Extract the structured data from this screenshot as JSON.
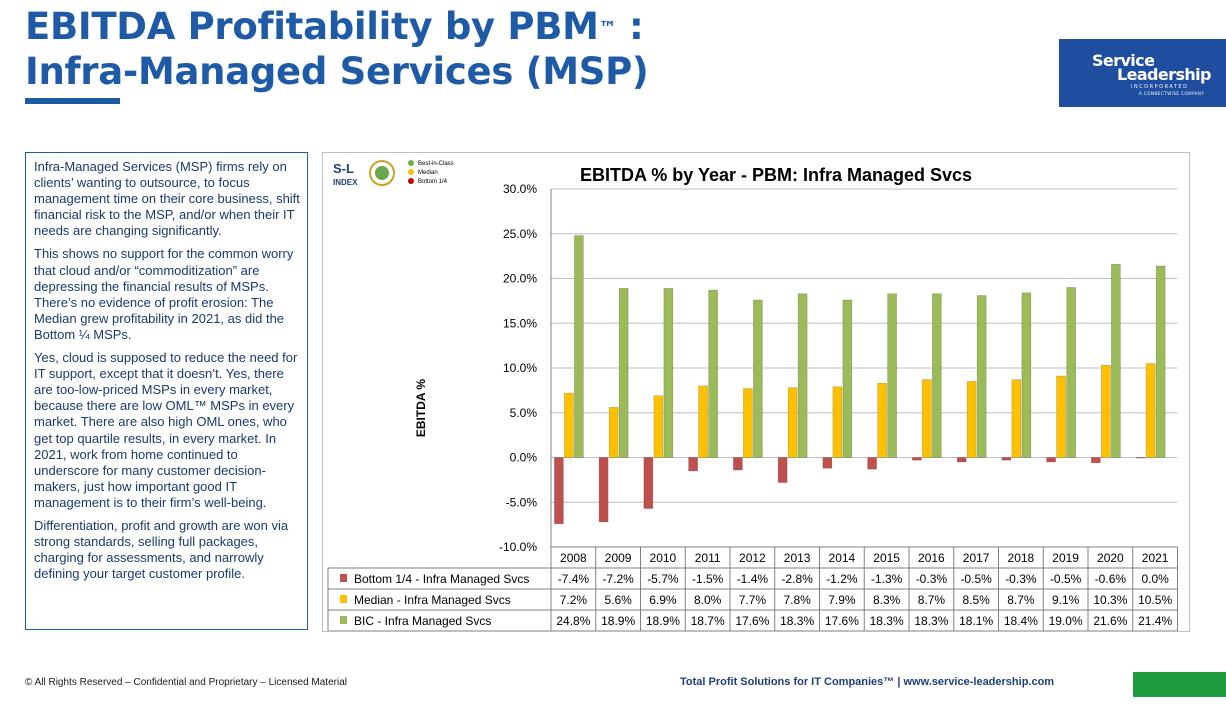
{
  "header": {
    "title_line1": "EBITDA Profitability by PBM",
    "title_tm": "™",
    "title_colon": " :",
    "title_line2": "Infra-Managed Services (MSP)"
  },
  "logo": {
    "line1": "Service",
    "line2": "Leadership",
    "line3": "INCORPORATED",
    "line4": "A CONNECTWISE COMPANY",
    "color": "#1f4ea0"
  },
  "description": {
    "paragraphs": [
      "Infra-Managed Services (MSP) firms rely on clients’ wanting to outsource, to focus management time on their core business, shift financial risk to the MSP, and/or when their IT needs are changing significantly.",
      "This shows no support for the common worry that cloud and/or “commoditization” are depressing the financial results of MSPs. There’s no evidence of profit erosion: The Median grew profitability in 2021, as did the Bottom ¼ MSPs.",
      "Yes, cloud is supposed to reduce the need for IT support, except that it doesn’t. Yes, there are too-low-priced MSPs in every market, because there are low OML™ MSPs in every market. There are also high OML ones, who get top quartile results, in every market. In 2021, work from home continued to underscore for many customer decision-makers, just how important good IT management is to their firm’s well-being.",
      "Differentiation, profit and growth are won via strong standards, selling full packages, charging for assessments, and narrowly defining your target customer profile."
    ]
  },
  "sl_index": {
    "logo_text": "S-L",
    "logo_sub": "INDEX",
    "legend": [
      {
        "label": "Best-in-Class",
        "color": "#70ad47"
      },
      {
        "label": "Median",
        "color": "#ffc000"
      },
      {
        "label": "Bottom 1/4",
        "color": "#c00000"
      }
    ]
  },
  "chart_data": {
    "type": "bar",
    "title": "EBITDA % by Year - PBM: Infra Managed Svcs",
    "ylabel": "EBITDA %",
    "xlabel": "",
    "ylim": [
      -10,
      30
    ],
    "yticks": [
      "30.0%",
      "25.0%",
      "20.0%",
      "15.0%",
      "10.0%",
      "5.0%",
      "0.0%",
      "-5.0%",
      "-10.0%"
    ],
    "categories": [
      "2008",
      "2009",
      "2010",
      "2011",
      "2012",
      "2013",
      "2014",
      "2015",
      "2016",
      "2017",
      "2018",
      "2019",
      "2020",
      "2021"
    ],
    "grid": true,
    "series": [
      {
        "name": "Bottom 1/4 - Infra Managed Svcs",
        "color": "#c0504d",
        "values": [
          -7.4,
          -7.2,
          -5.7,
          -1.5,
          -1.4,
          -2.8,
          -1.2,
          -1.3,
          -0.3,
          -0.5,
          -0.3,
          -0.5,
          -0.6,
          0.0
        ],
        "labels": [
          "-7.4%",
          "-7.2%",
          "-5.7%",
          "-1.5%",
          "-1.4%",
          "-2.8%",
          "-1.2%",
          "-1.3%",
          "-0.3%",
          "-0.5%",
          "-0.3%",
          "-0.5%",
          "-0.6%",
          "0.0%"
        ]
      },
      {
        "name": "Median - Infra Managed Svcs",
        "color": "#ffc000",
        "values": [
          7.2,
          5.6,
          6.9,
          8.0,
          7.7,
          7.8,
          7.9,
          8.3,
          8.7,
          8.5,
          8.7,
          9.1,
          10.3,
          10.5
        ],
        "labels": [
          "7.2%",
          "5.6%",
          "6.9%",
          "8.0%",
          "7.7%",
          "7.8%",
          "7.9%",
          "8.3%",
          "8.7%",
          "8.5%",
          "8.7%",
          "9.1%",
          "10.3%",
          "10.5%"
        ]
      },
      {
        "name": "BIC - Infra Managed Svcs",
        "color": "#9bbb59",
        "values": [
          24.8,
          18.9,
          18.9,
          18.7,
          17.6,
          18.3,
          17.6,
          18.3,
          18.3,
          18.1,
          18.4,
          19.0,
          21.6,
          21.4
        ],
        "labels": [
          "24.8%",
          "18.9%",
          "18.9%",
          "18.7%",
          "17.6%",
          "18.3%",
          "17.6%",
          "18.3%",
          "18.3%",
          "18.1%",
          "18.4%",
          "19.0%",
          "21.6%",
          "21.4%"
        ]
      }
    ],
    "data_table": true
  },
  "footer": {
    "left": "© All Rights Reserved – Confidential and Proprietary – Licensed Material",
    "right": "Total Profit Solutions for IT Companies™  |  www.service-leadership.com",
    "accent": "#1e9b3c"
  }
}
